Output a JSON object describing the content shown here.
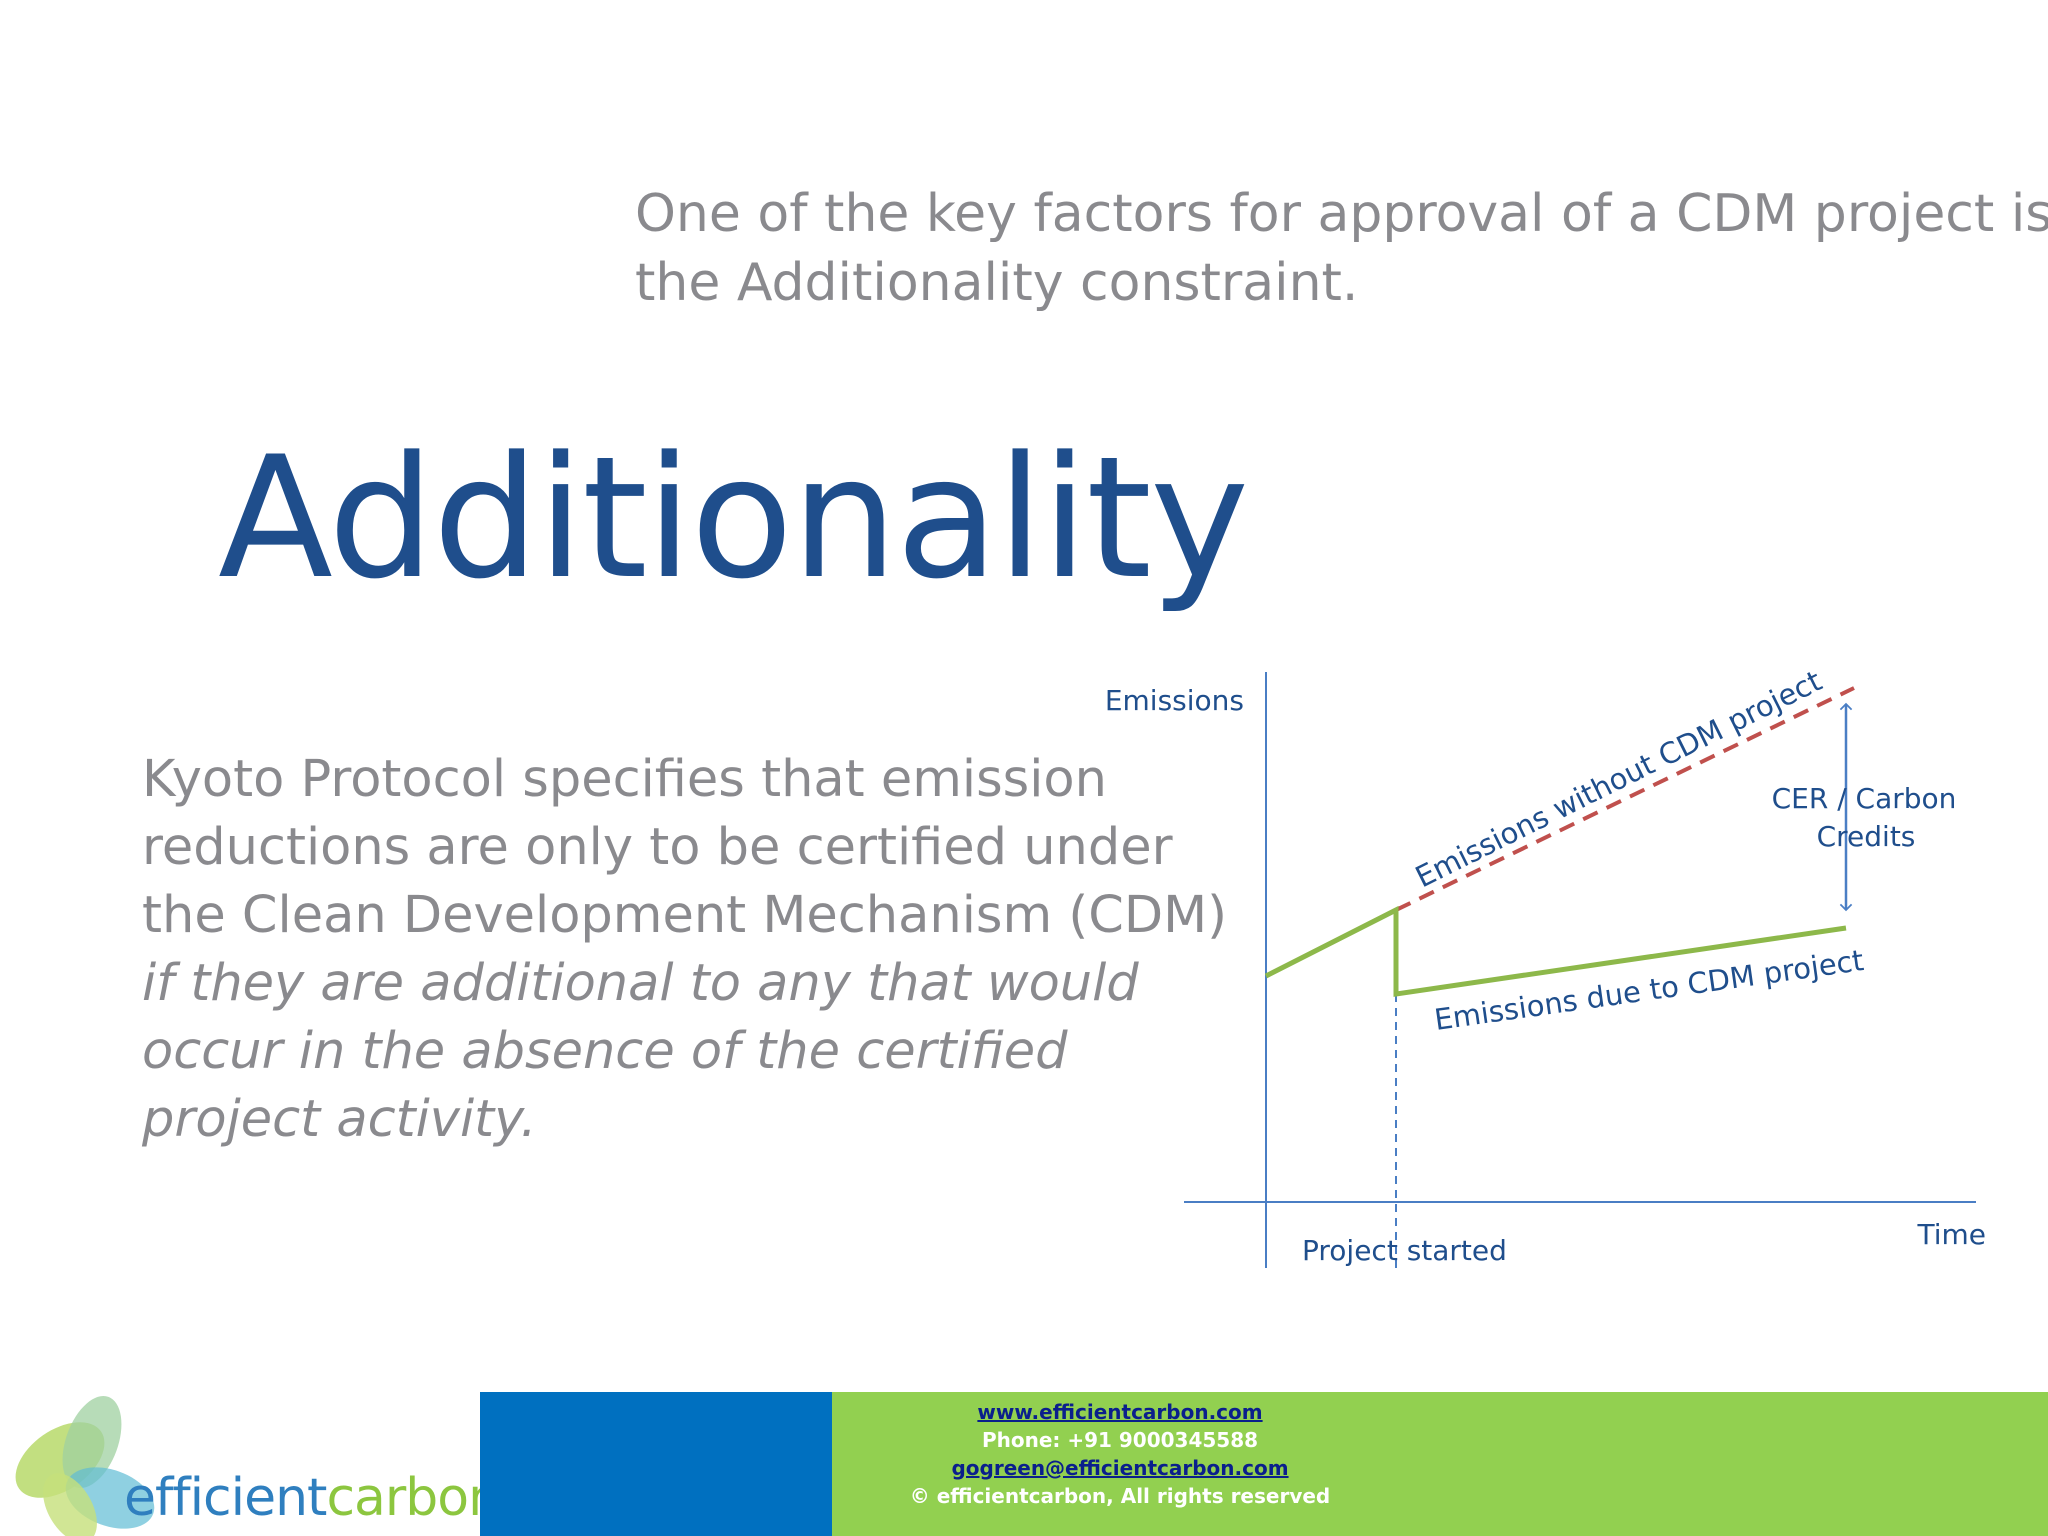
{
  "intro": {
    "line1": "One of the key factors for approval of a CDM project is",
    "line2": "the Additionality constraint."
  },
  "title": "Additionality",
  "body": {
    "line1": "Kyoto Protocol specifies that emission",
    "line2": "reductions are only to be certified under",
    "line3": "the Clean Development Mechanism (CDM)",
    "line4": "if they are additional to any that would",
    "line5": "occur in the absence of the certified",
    "line6": "project activity."
  },
  "diagram": {
    "y_label": "Emissions",
    "x_label": "Time",
    "project_label": "Project started",
    "baseline_label": "Emissions without CDM project",
    "project_line_label": "Emissions due to CDM project",
    "credits_line1": "CER / Carbon",
    "credits_line2": "Credits",
    "colors": {
      "axis": "#4a7ec4",
      "baseline": "#c0504d",
      "project": "#8db84a",
      "text": "#1f4e8c"
    }
  },
  "footer": {
    "logo_part1": "efficient",
    "logo_part2": "carbon",
    "website": "www.efficientcarbon.com",
    "phone": "Phone: +91 9000345588",
    "email": "gogreen@efficientcarbon.com",
    "copyright": "© efficientcarbon, All rights reserved",
    "colors": {
      "blue": "#0070c0",
      "green": "#92d050"
    }
  }
}
